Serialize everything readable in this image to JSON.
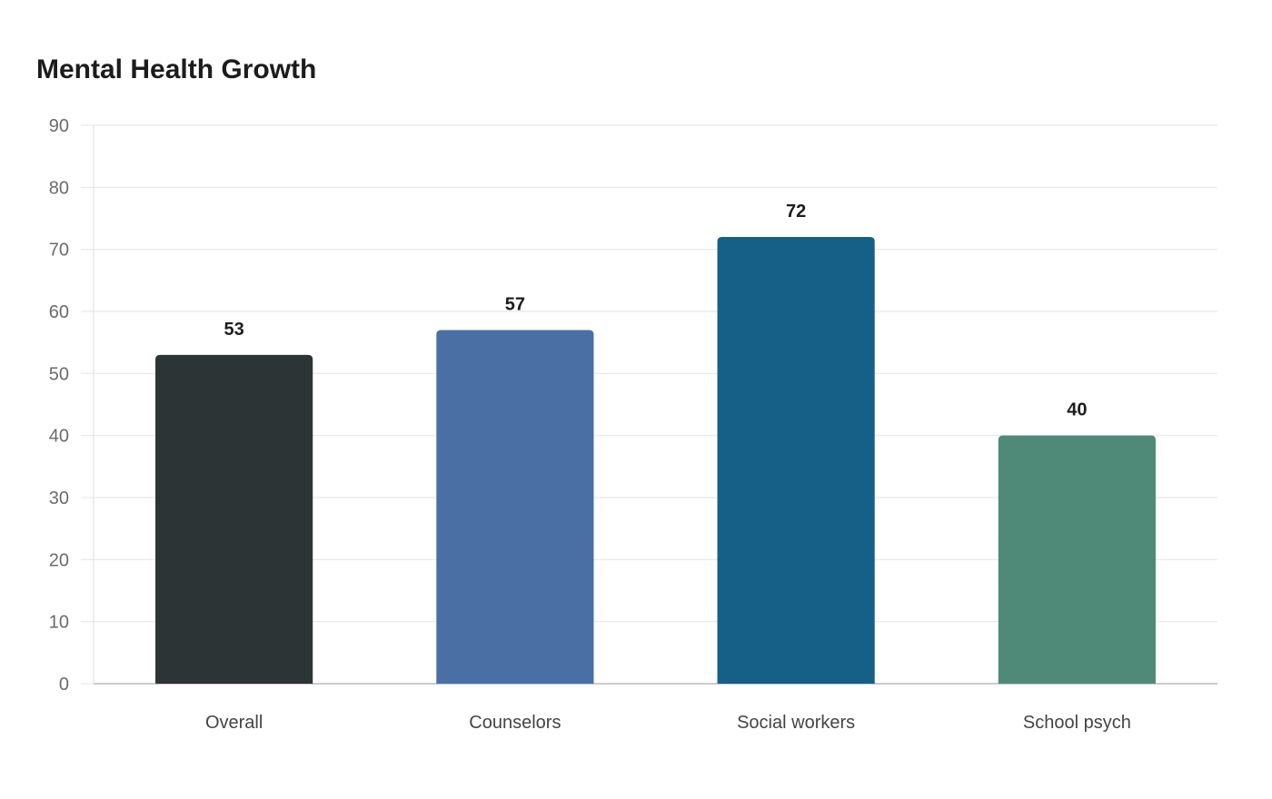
{
  "chart_data": {
    "type": "bar",
    "title": "Mental Health Growth",
    "categories": [
      "Overall",
      "Counselors",
      "Social workers",
      "School psych"
    ],
    "values": [
      53,
      57,
      72,
      40
    ],
    "colors": [
      "#2d3436",
      "#4a6fa5",
      "#166088",
      "#4f8a78"
    ],
    "xlabel": "",
    "ylabel": "",
    "ylim": [
      0,
      90
    ],
    "yticks": [
      0,
      10,
      20,
      30,
      40,
      50,
      60,
      70,
      80,
      90
    ],
    "grid": true,
    "legend": "none"
  },
  "style": {
    "grid_color": "#e8e8e8",
    "axis_color": "#cccccc"
  }
}
